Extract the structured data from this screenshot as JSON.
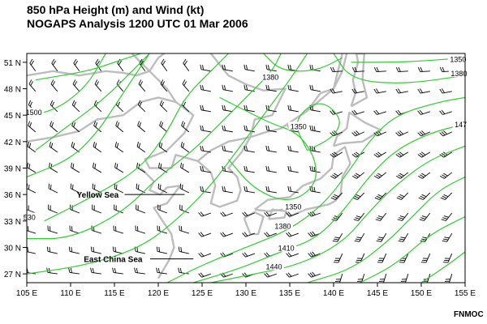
{
  "header": {
    "title_line1": "850 hPa Height (m) and Wind (kt)",
    "title_line2": "NOGAPS Analysis 1200 UTC 01 Mar 2006"
  },
  "credit": "FNMOC",
  "map": {
    "projection": "lat-lon",
    "lon_range": [
      105,
      155
    ],
    "lat_range": [
      26,
      52
    ],
    "lat_ticks": [
      {
        "value": 51,
        "label": "51 N"
      },
      {
        "value": 48,
        "label": "48 N"
      },
      {
        "value": 45,
        "label": "45 N"
      },
      {
        "value": 42,
        "label": "42 N"
      },
      {
        "value": 39,
        "label": "39 N"
      },
      {
        "value": 36,
        "label": "36 N"
      },
      {
        "value": 33,
        "label": "33 N"
      },
      {
        "value": 30,
        "label": "30 N"
      },
      {
        "value": 27,
        "label": "27 N"
      }
    ],
    "lon_ticks": [
      {
        "value": 105,
        "label": "105 E"
      },
      {
        "value": 110,
        "label": "110 E"
      },
      {
        "value": 115,
        "label": "115 E"
      },
      {
        "value": 120,
        "label": "120 E"
      },
      {
        "value": 125,
        "label": "125 E"
      },
      {
        "value": 130,
        "label": "130 E"
      },
      {
        "value": 135,
        "label": "135 E"
      },
      {
        "value": 140,
        "label": "140 E"
      },
      {
        "value": 145,
        "label": "145 E"
      },
      {
        "value": 150,
        "label": "150 E"
      },
      {
        "value": 155,
        "label": "155 E"
      }
    ],
    "contour_color": "#33cc33",
    "coast_color": "#bdbdbd",
    "contour_labels": [
      {
        "text": "1350",
        "lon": 154.2,
        "lat": 51.3
      },
      {
        "text": "1380",
        "lon": 154.3,
        "lat": 49.7
      },
      {
        "text": "1380",
        "lon": 132.8,
        "lat": 49.3
      },
      {
        "text": "1500",
        "lon": 105.8,
        "lat": 45.3
      },
      {
        "text": "1350",
        "lon": 136.0,
        "lat": 43.7
      },
      {
        "text": "147",
        "lon": 154.5,
        "lat": 43.9
      },
      {
        "text": "1350",
        "lon": 135.4,
        "lat": 34.6
      },
      {
        "text": "1380",
        "lon": 134.2,
        "lat": 32.4
      },
      {
        "text": "1410",
        "lon": 134.6,
        "lat": 29.9
      },
      {
        "text": "1440",
        "lon": 133.2,
        "lat": 27.8
      },
      {
        "text": "530",
        "lon": 105.3,
        "lat": 33.4
      }
    ],
    "place_labels": [
      {
        "text": "Yellow Sea",
        "lon": 110.7,
        "lat": 36.0,
        "line_to_lon": 123.0
      },
      {
        "text": "East China Sea",
        "lon": 111.5,
        "lat": 28.7,
        "line_to_lon": 124.0
      }
    ]
  }
}
